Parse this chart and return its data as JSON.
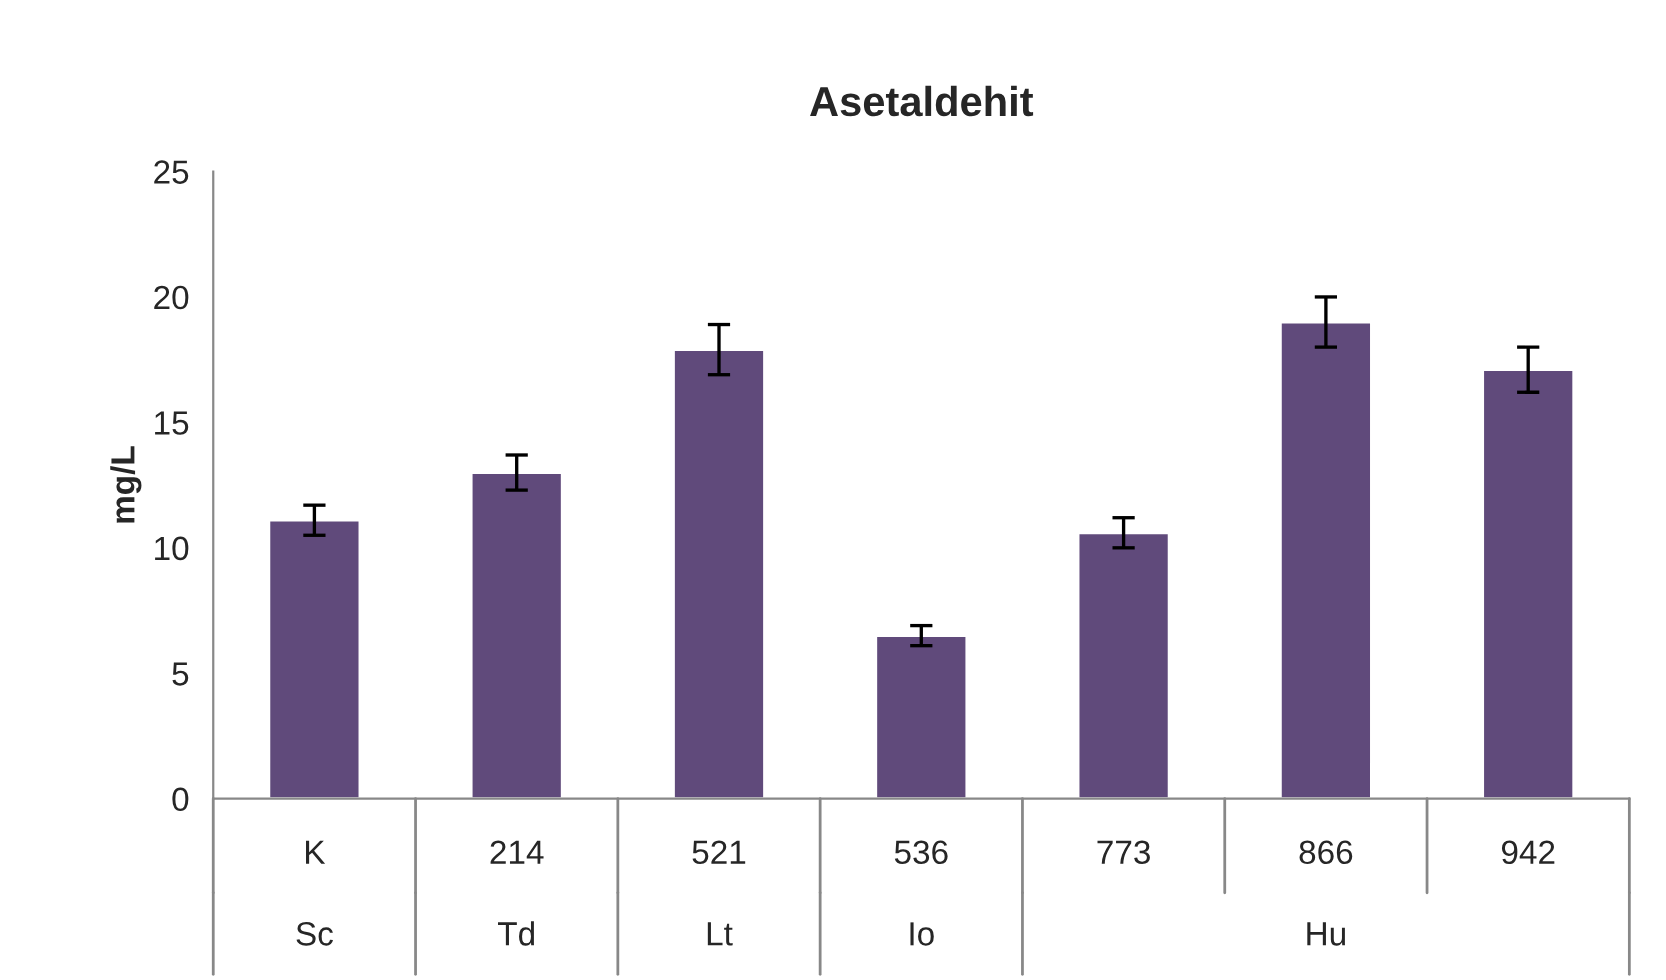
{
  "chart_data": {
    "type": "bar",
    "title": "Asetaldehit",
    "ylabel": "mg/L",
    "categories": [
      "K",
      "214",
      "521",
      "536",
      "773",
      "866",
      "942"
    ],
    "values": [
      11.1,
      13.0,
      17.9,
      6.5,
      10.6,
      19.0,
      17.1
    ],
    "errors": [
      0.6,
      0.7,
      1.0,
      0.4,
      0.6,
      1.0,
      0.9
    ],
    "color": "#604a7b",
    "ylim": [
      0,
      25
    ],
    "yticks": [
      0,
      5,
      10,
      15,
      20,
      25
    ],
    "grid": false,
    "annotations": [
      "Sc",
      "Td",
      "Lt",
      "Io",
      "Hu"
    ]
  }
}
